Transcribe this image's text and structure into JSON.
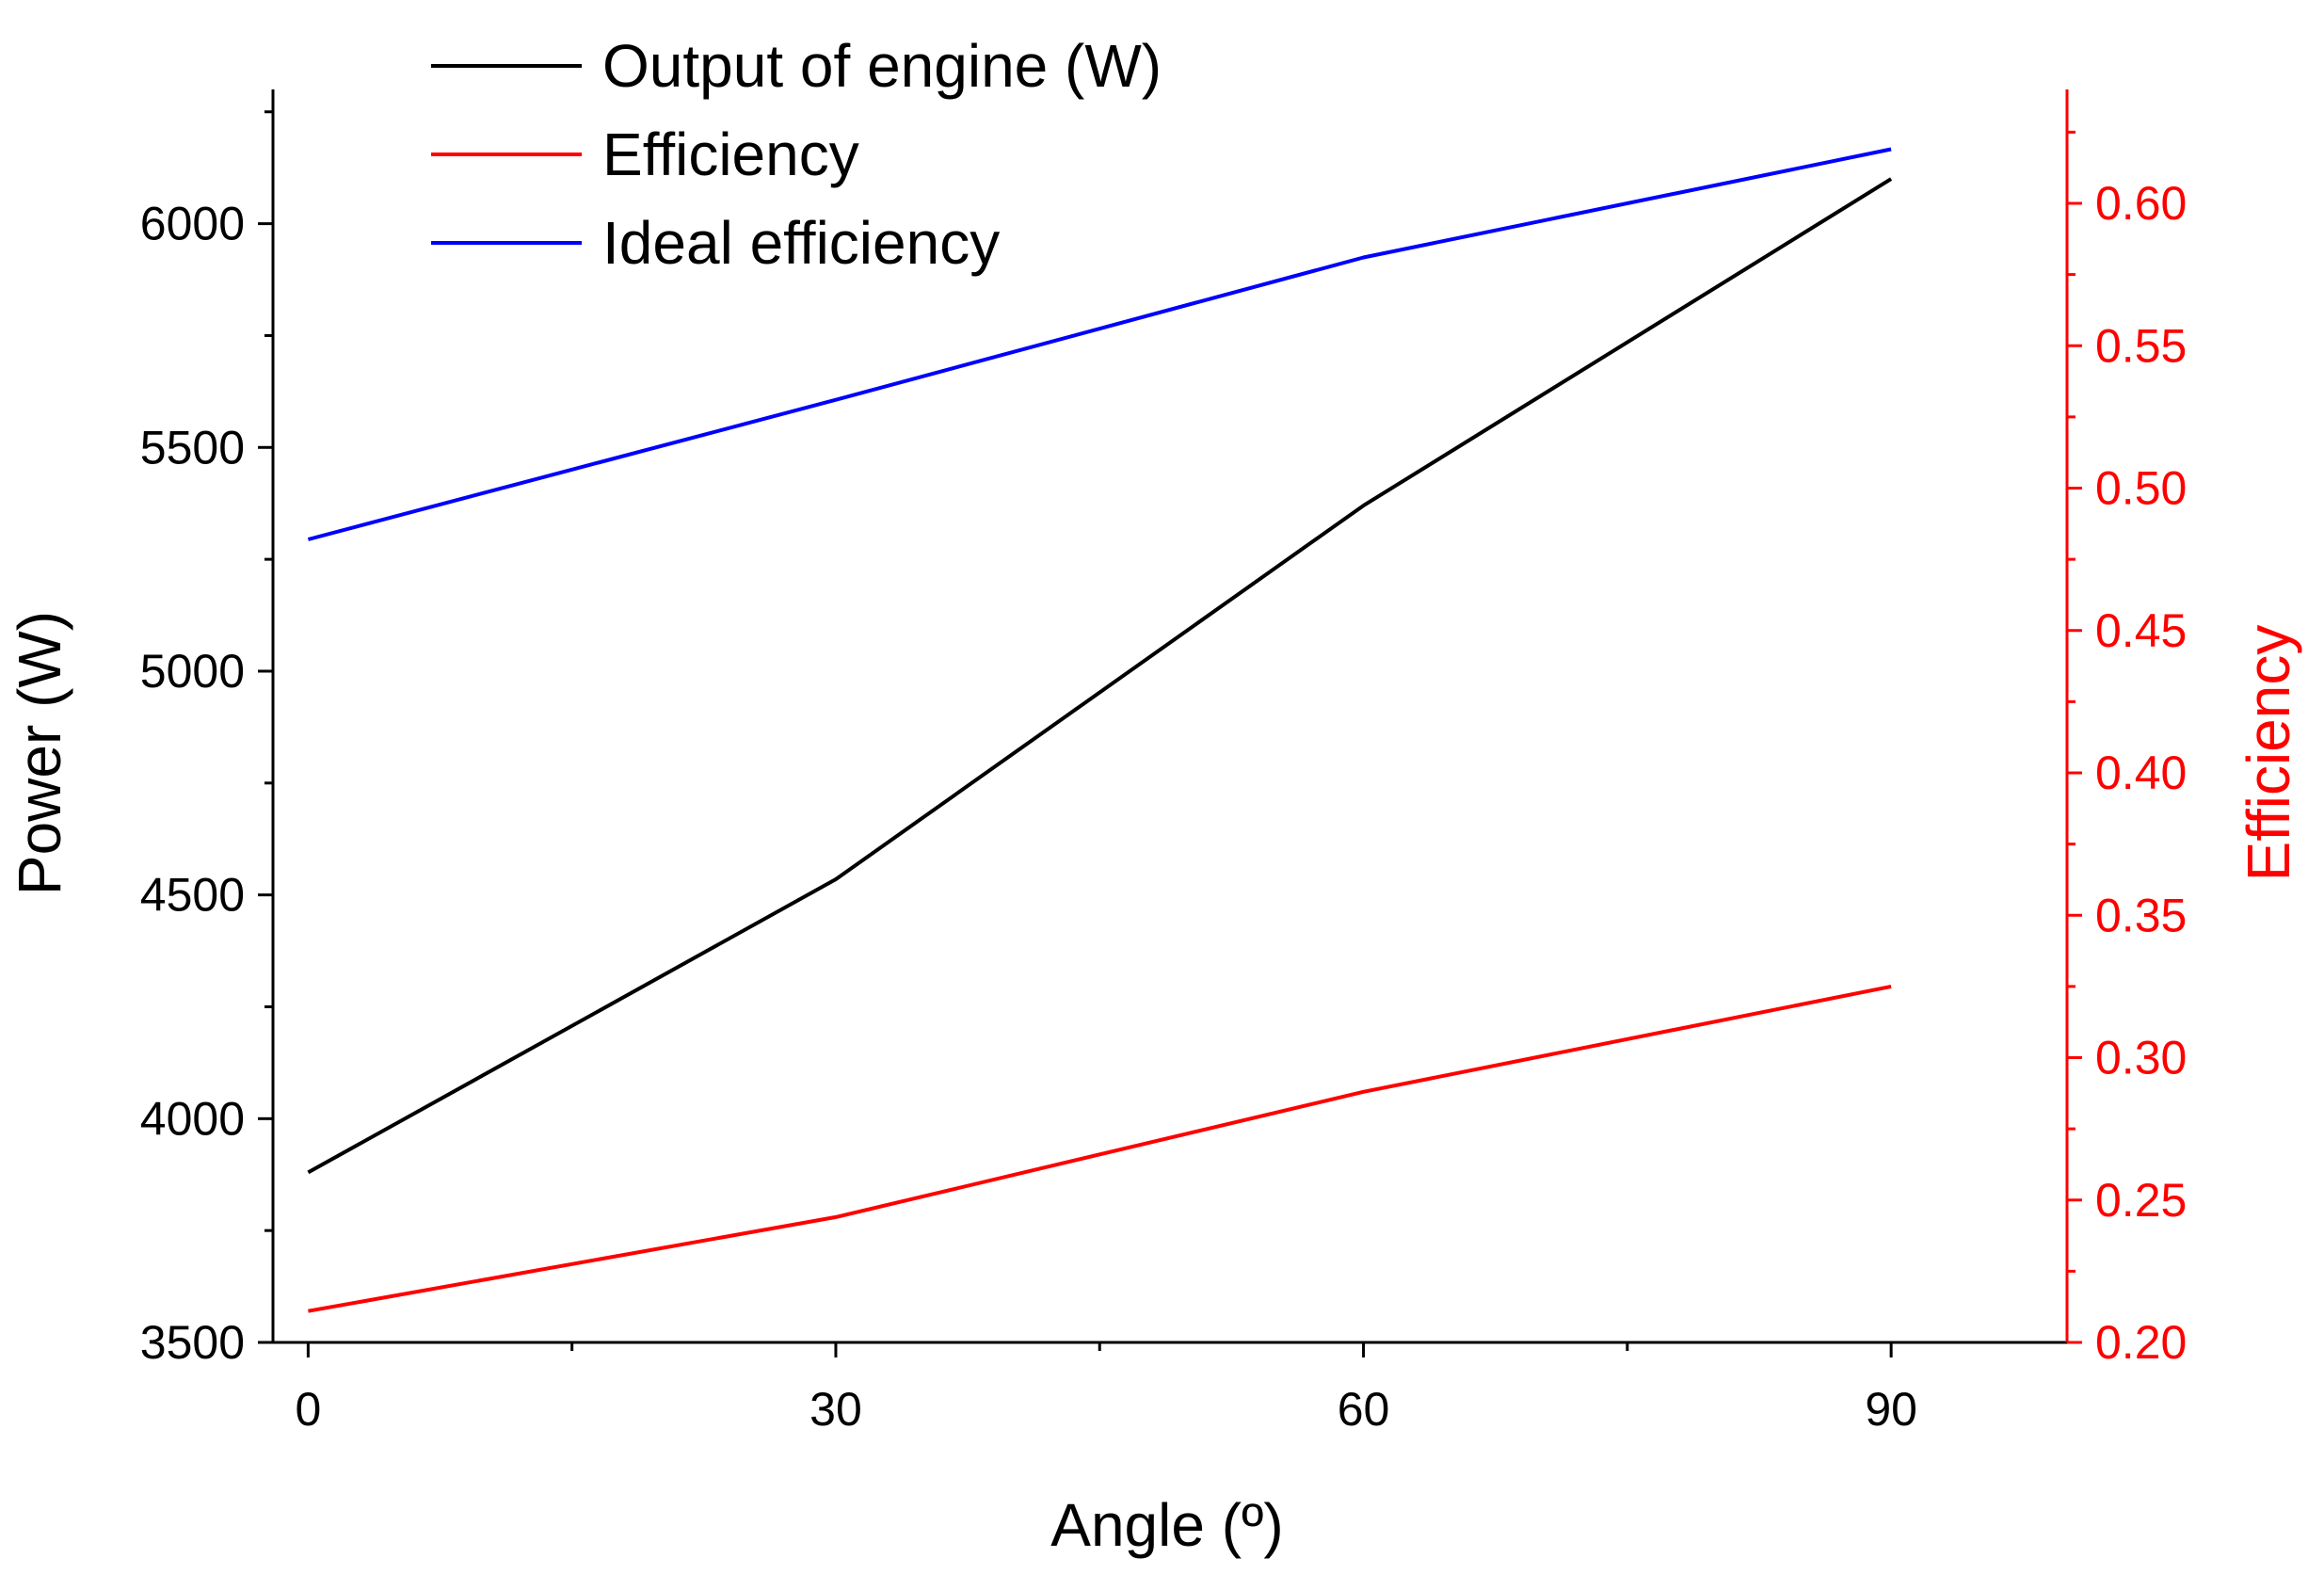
{
  "chart_data": {
    "type": "line",
    "x": [
      0,
      30,
      60,
      90
    ],
    "xlabel": "Angle (º)",
    "ylabel_left": "Power (W)",
    "ylabel_right": "Efficiency",
    "xlim": [
      -2,
      100
    ],
    "ylim_left": [
      3500,
      6300
    ],
    "ylim_right": [
      0.2,
      0.64
    ],
    "x_ticks": [
      0,
      30,
      60,
      90
    ],
    "y_left_ticks": [
      3500,
      4000,
      4500,
      5000,
      5500,
      6000
    ],
    "y_right_ticks": [
      0.2,
      0.25,
      0.3,
      0.35,
      0.4,
      0.45,
      0.5,
      0.55,
      0.6
    ],
    "x_tick_labels": [
      "0",
      "30",
      "60",
      "90"
    ],
    "y_left_tick_labels": [
      "3500",
      "4000",
      "4500",
      "5000",
      "5500",
      "6000"
    ],
    "y_right_tick_labels": [
      "0.20",
      "0.25",
      "0.30",
      "0.35",
      "0.40",
      "0.45",
      "0.50",
      "0.55",
      "0.60"
    ],
    "legend_position": "top-left",
    "grid": false,
    "series": [
      {
        "name": "Output of engine (W)",
        "axis": "left",
        "color": "#000000",
        "values": [
          3880,
          4535,
          5370,
          6100
        ]
      },
      {
        "name": "Efficiency",
        "axis": "right",
        "color": "#ff0000",
        "values": [
          0.211,
          0.244,
          0.288,
          0.325
        ]
      },
      {
        "name": "Ideal efficiency",
        "axis": "right",
        "color": "#0000ff",
        "values": [
          0.482,
          0.531,
          0.581,
          0.619
        ]
      }
    ],
    "right_axis_color": "#ff0000"
  }
}
